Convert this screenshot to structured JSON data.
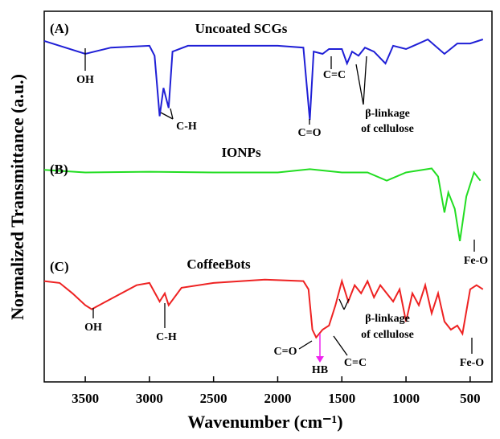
{
  "chart_data": {
    "type": "line",
    "x_label": "Wavenumber (cm⁻¹)",
    "y_label": "Normalized Transmittance (a.u.)",
    "xlim": [
      3820,
      330
    ],
    "ylim": [
      0,
      100
    ],
    "xticks": [
      3500,
      3000,
      2500,
      2000,
      1500,
      1000,
      500
    ],
    "series": [
      {
        "name": "Uncoated SCGs",
        "color": "#1f1fd6",
        "x": [
          3820,
          3500,
          3300,
          3000,
          2960,
          2920,
          2890,
          2850,
          2820,
          2700,
          2000,
          1800,
          1750,
          1720,
          1650,
          1600,
          1500,
          1460,
          1420,
          1370,
          1320,
          1250,
          1160,
          1100,
          1000,
          900,
          830,
          700,
          600,
          500,
          400
        ],
        "values": [
          92.0,
          88.5,
          90.2,
          90.7,
          88.0,
          71.7,
          79.3,
          73.9,
          89.1,
          90.7,
          90.7,
          90.2,
          70.7,
          89.1,
          88.5,
          89.8,
          89.8,
          85.9,
          89.1,
          88.0,
          90.2,
          89.1,
          85.9,
          90.7,
          89.8,
          91.3,
          92.4,
          88.5,
          91.3,
          91.3,
          92.4
        ]
      },
      {
        "name": "IONPs",
        "color": "#22dd22",
        "x": [
          3820,
          3500,
          3000,
          2500,
          2000,
          1750,
          1500,
          1300,
          1150,
          1000,
          800,
          750,
          700,
          670,
          620,
          580,
          530,
          470,
          420
        ],
        "values": [
          57.2,
          56.5,
          56.7,
          56.5,
          56.5,
          57.4,
          56.5,
          56.5,
          54.3,
          56.5,
          57.6,
          55.4,
          45.7,
          51.1,
          46.7,
          38.0,
          50.0,
          56.5,
          54.3
        ]
      },
      {
        "name": "CoffeeBots",
        "color": "#ee2222",
        "x": [
          3820,
          3700,
          3600,
          3500,
          3450,
          3300,
          3100,
          3000,
          2920,
          2880,
          2850,
          2750,
          2500,
          2100,
          1800,
          1760,
          1730,
          1700,
          1650,
          1600,
          1550,
          1500,
          1450,
          1400,
          1350,
          1300,
          1250,
          1200,
          1100,
          1050,
          1000,
          950,
          900,
          850,
          800,
          750,
          700,
          650,
          600,
          560,
          500,
          450,
          400
        ],
        "values": [
          27.2,
          26.7,
          23.9,
          20.7,
          19.6,
          22.4,
          26.1,
          26.7,
          21.7,
          23.9,
          20.7,
          25.4,
          26.7,
          27.6,
          27.2,
          25.0,
          14.1,
          12.0,
          14.1,
          15.2,
          20.7,
          27.2,
          21.7,
          26.1,
          23.9,
          27.2,
          22.8,
          26.1,
          21.7,
          25.0,
          16.3,
          23.9,
          20.7,
          26.1,
          18.5,
          23.9,
          16.3,
          14.1,
          15.2,
          13.0,
          25.0,
          26.1,
          25.0
        ]
      }
    ],
    "annotations": [
      "(A)",
      "OH",
      "C-H",
      "C=O",
      "C=C",
      "β-linkage",
      "of cellulose",
      "(B)",
      "Fe-O",
      "(C)",
      "OH",
      "C-H",
      "β-linkage",
      "of cellulose",
      "C=O",
      "HB",
      "C=C",
      "Fe-O"
    ]
  }
}
